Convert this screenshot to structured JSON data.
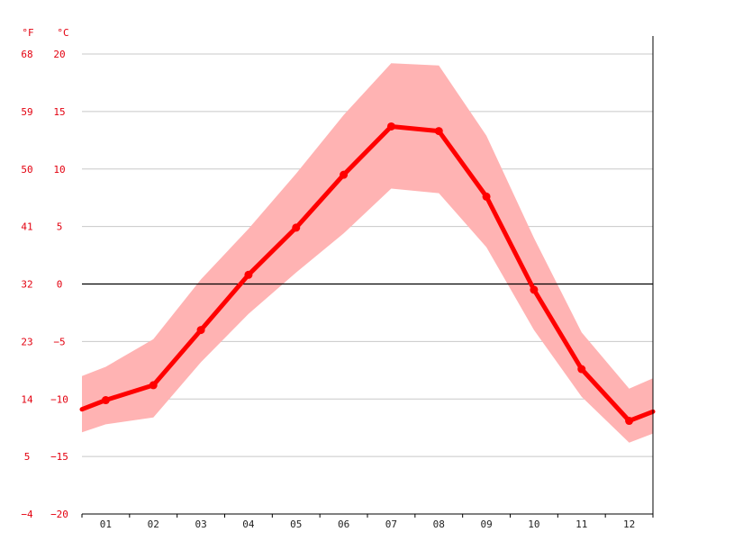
{
  "chart_data": {
    "type": "line",
    "units": {
      "fahrenheit": "°F",
      "celsius": "°C"
    },
    "categories": [
      "01",
      "02",
      "03",
      "04",
      "05",
      "06",
      "07",
      "08",
      "09",
      "10",
      "11",
      "12"
    ],
    "series": [
      {
        "values": [
          -10.1,
          -8.8,
          -4.0,
          0.8,
          4.9,
          9.5,
          13.7,
          13.3,
          7.6,
          -0.5,
          -7.4,
          -11.9
        ],
        "min": [
          -12.2,
          -11.6,
          -6.8,
          -2.6,
          1.0,
          4.4,
          8.3,
          7.9,
          3.2,
          -4.0,
          -9.8,
          -13.8
        ],
        "max": [
          -7.2,
          -4.8,
          0.4,
          4.8,
          9.6,
          14.7,
          19.2,
          19.0,
          12.9,
          4.0,
          -4.2,
          -9.1
        ],
        "range_start": {
          "value": -10.9,
          "min": -12.9,
          "max": -8.0
        },
        "range_end": {
          "value": -11.1,
          "min": -13.0,
          "max": -8.2
        }
      }
    ],
    "y_celsius_ticks": [
      "20",
      "15",
      "10",
      "5",
      "0",
      "−5",
      "−10",
      "−15",
      "−20"
    ],
    "y_fahrenheit_ticks": [
      "68",
      "59",
      "50",
      "41",
      "32",
      "23",
      "14",
      "5",
      "−4"
    ],
    "ylim": [
      -20,
      20
    ],
    "grid": true,
    "colors": {
      "line": "#ff0000",
      "band": "#ffb3b3",
      "grid": "#c8c8c8",
      "zero_line": "#000000",
      "axis_text": "#e3000f"
    }
  }
}
